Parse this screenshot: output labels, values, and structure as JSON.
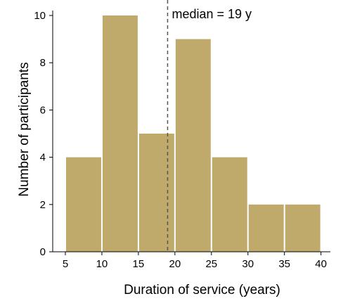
{
  "chart_data": {
    "type": "bar",
    "bins": [
      {
        "from": 5,
        "to": 10,
        "count": 4
      },
      {
        "from": 10,
        "to": 15,
        "count": 10
      },
      {
        "from": 15,
        "to": 20,
        "count": 5
      },
      {
        "from": 20,
        "to": 25,
        "count": 9
      },
      {
        "from": 25,
        "to": 30,
        "count": 4
      },
      {
        "from": 30,
        "to": 35,
        "count": 2
      },
      {
        "from": 35,
        "to": 40,
        "count": 2
      }
    ],
    "xlabel": "Duration of service (years)",
    "ylabel": "Number of participants",
    "xlim": [
      5,
      40
    ],
    "ylim": [
      0,
      10
    ],
    "xticks": [
      "5",
      "10",
      "15",
      "20",
      "25",
      "30",
      "35",
      "40"
    ],
    "yticks": [
      "0",
      "2",
      "4",
      "6",
      "8",
      "10"
    ],
    "median": 19,
    "median_label": "median = 19 y",
    "bar_color": "#bfaa6c",
    "grid": false
  }
}
